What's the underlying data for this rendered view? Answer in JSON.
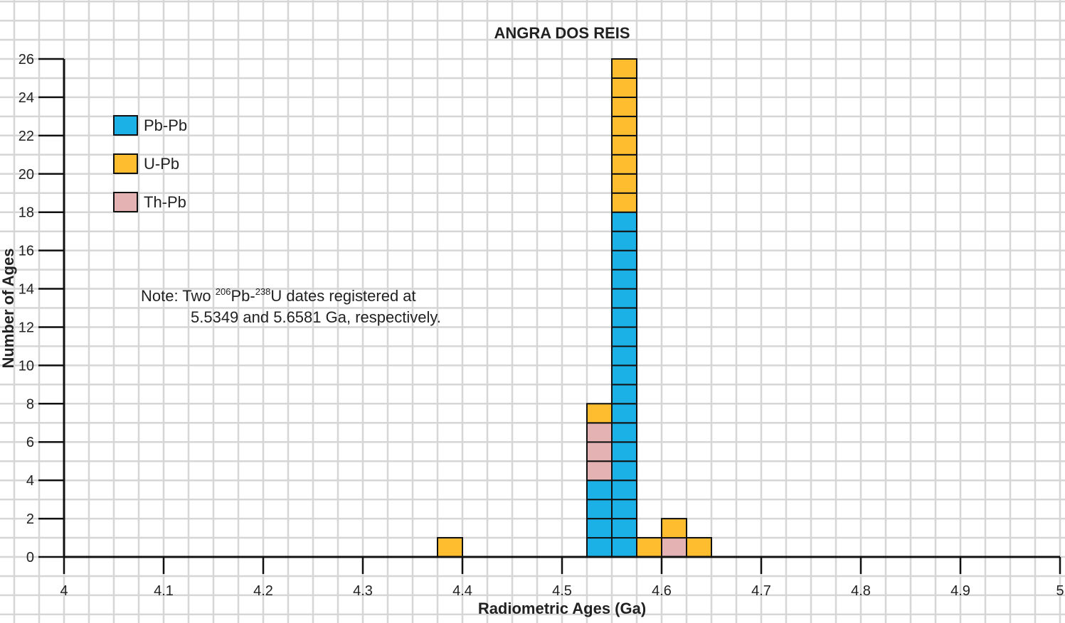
{
  "chart_data": {
    "type": "bar",
    "stacked": true,
    "title": "ANGRA DOS REIS",
    "xlabel": "Radiometric Ages (Ga)",
    "ylabel": "Number of Ages",
    "xlim": [
      4,
      5
    ],
    "ylim": [
      0,
      26
    ],
    "x_ticks": [
      "4",
      "4.1",
      "4.2",
      "4.3",
      "4.4",
      "4.5",
      "4.6",
      "4.7",
      "4.8",
      "4.9",
      "5"
    ],
    "y_ticks": [
      "0",
      "2",
      "4",
      "6",
      "8",
      "10",
      "12",
      "14",
      "16",
      "18",
      "20",
      "22",
      "24",
      "26"
    ],
    "bin_width": 0.025,
    "bins": [
      {
        "start": 4.375,
        "counts": {
          "Pb-Pb": 0,
          "Th-Pb": 0,
          "U-Pb": 1
        }
      },
      {
        "start": 4.525,
        "counts": {
          "Pb-Pb": 4,
          "Th-Pb": 3,
          "U-Pb": 1
        }
      },
      {
        "start": 4.55,
        "counts": {
          "Pb-Pb": 18,
          "Th-Pb": 0,
          "U-Pb": 8
        }
      },
      {
        "start": 4.575,
        "counts": {
          "Pb-Pb": 0,
          "Th-Pb": 0,
          "U-Pb": 1
        }
      },
      {
        "start": 4.6,
        "counts": {
          "Pb-Pb": 0,
          "Th-Pb": 1,
          "U-Pb": 1
        }
      },
      {
        "start": 4.625,
        "counts": {
          "Pb-Pb": 0,
          "Th-Pb": 0,
          "U-Pb": 1
        }
      }
    ],
    "stack_order": [
      "Pb-Pb",
      "Th-Pb",
      "U-Pb"
    ],
    "series": [
      {
        "name": "Pb-Pb",
        "color": "#1bb0e6"
      },
      {
        "name": "U-Pb",
        "color": "#fdbd2e"
      },
      {
        "name": "Th-Pb",
        "color": "#e4b2b2"
      }
    ],
    "legend_position": "top-left",
    "grid": true,
    "note": {
      "prefix": "Note: Two ",
      "sup1": "206",
      "mid1": "Pb-",
      "sup2": "238",
      "mid2": "U dates registered at",
      "line2": "5.5349 and 5.6581 Ga, respectively."
    }
  }
}
